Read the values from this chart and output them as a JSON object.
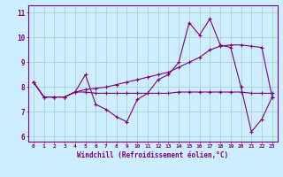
{
  "xlabel": "Windchill (Refroidissement éolien,°C)",
  "bg_color": "#cceeff",
  "line_color": "#800080",
  "grid_color": "#aacccc",
  "xlim": [
    -0.5,
    23.5
  ],
  "ylim": [
    5.8,
    11.3
  ],
  "yticks": [
    6,
    7,
    8,
    9,
    10,
    11
  ],
  "xticks": [
    0,
    1,
    2,
    3,
    4,
    5,
    6,
    7,
    8,
    9,
    10,
    11,
    12,
    13,
    14,
    15,
    16,
    17,
    18,
    19,
    20,
    21,
    22,
    23
  ],
  "series1_x": [
    0,
    1,
    2,
    3,
    4,
    5,
    6,
    7,
    8,
    9,
    10,
    11,
    12,
    13,
    14,
    15,
    16,
    17,
    18,
    19,
    20,
    21,
    22,
    23
  ],
  "series1_y": [
    8.2,
    7.6,
    7.6,
    7.6,
    7.8,
    8.5,
    7.3,
    7.1,
    6.8,
    6.6,
    7.5,
    7.75,
    8.3,
    8.5,
    9.0,
    10.6,
    10.1,
    10.75,
    9.7,
    9.6,
    8.0,
    6.2,
    6.7,
    7.6
  ],
  "series2_x": [
    0,
    1,
    2,
    3,
    4,
    5,
    6,
    7,
    8,
    9,
    10,
    11,
    12,
    13,
    14,
    15,
    16,
    17,
    18,
    19,
    20,
    21,
    22,
    23
  ],
  "series2_y": [
    8.2,
    7.6,
    7.6,
    7.6,
    7.8,
    7.8,
    7.75,
    7.75,
    7.75,
    7.75,
    7.75,
    7.75,
    7.75,
    7.75,
    7.8,
    7.8,
    7.8,
    7.8,
    7.8,
    7.8,
    7.8,
    7.75,
    7.75,
    7.75
  ],
  "series3_x": [
    0,
    1,
    2,
    3,
    4,
    5,
    6,
    7,
    8,
    9,
    10,
    11,
    12,
    13,
    14,
    15,
    16,
    17,
    18,
    19,
    20,
    21,
    22,
    23
  ],
  "series3_y": [
    8.2,
    7.6,
    7.6,
    7.6,
    7.8,
    7.9,
    7.95,
    8.0,
    8.1,
    8.2,
    8.3,
    8.4,
    8.5,
    8.6,
    8.8,
    9.0,
    9.2,
    9.5,
    9.65,
    9.7,
    9.7,
    9.65,
    9.6,
    7.6
  ]
}
